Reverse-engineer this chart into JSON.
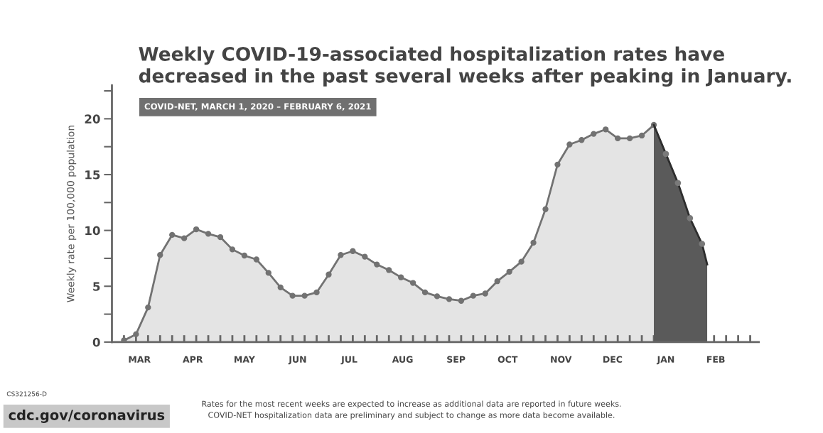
{
  "chart_data": {
    "type": "area",
    "title": "Weekly COVID-19-associated hospitalization rates have\ndecreased in the past several weeks after peaking in January.",
    "subtitle": "COVID-NET, MARCH 1, 2020 – FEBRUARY 6, 2021",
    "ylabel": "Weekly rate per 100,000 population",
    "annotations": [
      "CS321256-D",
      "cdc.gov/coronavirus",
      "Rates for the most recent weeks are expected to increase as additional data are reported in future weeks.\nCOVID-NET hospitalization data are preliminary and subject to change as more data become available."
    ],
    "series": [
      {
        "color": "#e4e4e4",
        "marker": "circle",
        "x": [
          "2020-03-07",
          "2020-03-14",
          "2020-03-21",
          "2020-03-28",
          "2020-04-04",
          "2020-04-11",
          "2020-04-18",
          "2020-04-25",
          "2020-05-02",
          "2020-05-09",
          "2020-05-16",
          "2020-05-23",
          "2020-05-30",
          "2020-06-06",
          "2020-06-13",
          "2020-06-20",
          "2020-06-27",
          "2020-07-04",
          "2020-07-11",
          "2020-07-18",
          "2020-07-25",
          "2020-08-01",
          "2020-08-08",
          "2020-08-15",
          "2020-08-22",
          "2020-08-29",
          "2020-09-05",
          "2020-09-12",
          "2020-09-19",
          "2020-09-26",
          "2020-10-03",
          "2020-10-10",
          "2020-10-17",
          "2020-10-24",
          "2020-10-31",
          "2020-11-07",
          "2020-11-14",
          "2020-11-21",
          "2020-11-28",
          "2020-12-05",
          "2020-12-12",
          "2020-12-19",
          "2020-12-26",
          "2021-01-02",
          "2021-01-09"
        ],
        "values": [
          0.15,
          0.7,
          3.1,
          7.8,
          9.6,
          9.3,
          10.1,
          9.7,
          9.4,
          8.3,
          7.75,
          7.4,
          6.2,
          4.9,
          4.15,
          4.15,
          4.45,
          6.05,
          7.8,
          8.15,
          7.65,
          6.95,
          6.45,
          5.8,
          5.3,
          4.45,
          4.1,
          3.85,
          3.7,
          4.15,
          4.35,
          5.45,
          6.3,
          7.2,
          8.9,
          11.9,
          15.9,
          17.7,
          18.1,
          18.65,
          19.05,
          18.25,
          18.25,
          18.5,
          19.45
        ]
      },
      {
        "color": "#5a5a5a",
        "marker": "none",
        "x": [
          "2021-01-09",
          "2021-01-16",
          "2021-01-23",
          "2021-01-30",
          "2021-02-06",
          "2021-02-09"
        ],
        "values": [
          19.45,
          16.85,
          14.25,
          11.1,
          8.8,
          6.95
        ]
      },
      {
        "type": "scatter",
        "color": "#7a7a7a",
        "marker": "circle",
        "x": [
          "2021-01-16",
          "2021-01-23",
          "2021-01-30",
          "2021-02-06"
        ],
        "values": [
          16.85,
          14.25,
          11.1,
          8.8
        ]
      }
    ],
    "xlim": [
      "2020-02-29",
      "2021-03-11"
    ],
    "xticks": [
      {
        "value": "2020-03-07",
        "label": null
      },
      {
        "value": "2020-03-14",
        "label": null
      },
      {
        "value": "2020-03-21",
        "label": null
      },
      {
        "value": "2020-03-28",
        "label": null
      },
      {
        "value": "2020-04-04",
        "label": null
      },
      {
        "value": "2020-04-11",
        "label": null
      },
      {
        "value": "2020-04-18",
        "label": null
      },
      {
        "value": "2020-04-25",
        "label": null
      },
      {
        "value": "2020-05-02",
        "label": null
      },
      {
        "value": "2020-05-09",
        "label": null
      },
      {
        "value": "2020-05-16",
        "label": null
      },
      {
        "value": "2020-05-23",
        "label": null
      },
      {
        "value": "2020-05-30",
        "label": null
      },
      {
        "value": "2020-06-06",
        "label": null
      },
      {
        "value": "2020-06-13",
        "label": null
      },
      {
        "value": "2020-06-20",
        "label": null
      },
      {
        "value": "2020-06-27",
        "label": null
      },
      {
        "value": "2020-07-04",
        "label": null
      },
      {
        "value": "2020-07-11",
        "label": null
      },
      {
        "value": "2020-07-18",
        "label": null
      },
      {
        "value": "2020-07-25",
        "label": null
      },
      {
        "value": "2020-08-01",
        "label": null
      },
      {
        "value": "2020-08-08",
        "label": null
      },
      {
        "value": "2020-08-15",
        "label": null
      },
      {
        "value": "2020-08-22",
        "label": null
      },
      {
        "value": "2020-08-29",
        "label": null
      },
      {
        "value": "2020-09-05",
        "label": null
      },
      {
        "value": "2020-09-12",
        "label": null
      },
      {
        "value": "2020-09-19",
        "label": null
      },
      {
        "value": "2020-09-26",
        "label": null
      },
      {
        "value": "2020-10-03",
        "label": null
      },
      {
        "value": "2020-10-10",
        "label": null
      },
      {
        "value": "2020-10-17",
        "label": null
      },
      {
        "value": "2020-10-24",
        "label": null
      },
      {
        "value": "2020-10-31",
        "label": null
      },
      {
        "value": "2020-11-07",
        "label": null
      },
      {
        "value": "2020-11-14",
        "label": null
      },
      {
        "value": "2020-11-21",
        "label": null
      },
      {
        "value": "2020-11-28",
        "label": null
      },
      {
        "value": "2020-12-05",
        "label": null
      },
      {
        "value": "2020-12-12",
        "label": null
      },
      {
        "value": "2020-12-19",
        "label": null
      },
      {
        "value": "2020-12-26",
        "label": null
      },
      {
        "value": "2021-01-02",
        "label": null
      },
      {
        "value": "2021-01-09",
        "label": null
      },
      {
        "value": "2021-01-16",
        "label": null
      },
      {
        "value": "2021-01-23",
        "label": null
      },
      {
        "value": "2021-01-30",
        "label": null
      },
      {
        "value": "2021-02-06",
        "label": null
      },
      {
        "value": "2021-02-13",
        "label": null
      },
      {
        "value": "2021-02-20",
        "label": null
      },
      {
        "value": "2021-02-27",
        "label": null
      },
      {
        "value": "2021-03-06",
        "label": null
      },
      {
        "value": "2020-03-16",
        "label": "MAR"
      },
      {
        "value": "2020-04-16",
        "label": "APR"
      },
      {
        "value": "2020-05-16",
        "label": "MAY"
      },
      {
        "value": "2020-06-16",
        "label": "JUN"
      },
      {
        "value": "2020-07-16",
        "label": "JUL"
      },
      {
        "value": "2020-08-16",
        "label": "AUG"
      },
      {
        "value": "2020-09-16",
        "label": "SEP"
      },
      {
        "value": "2020-10-16",
        "label": "OCT"
      },
      {
        "value": "2020-11-16",
        "label": "NOV"
      },
      {
        "value": "2020-12-16",
        "label": "DEC"
      },
      {
        "value": "2021-01-16",
        "label": "JAN"
      },
      {
        "value": "2021-02-14",
        "label": "FEB"
      }
    ],
    "ylim": [
      0,
      23
    ],
    "yticks": [
      0,
      {
        "value": 2.5,
        "label": null
      },
      5,
      {
        "value": 7.5,
        "label": null
      },
      10,
      {
        "value": 12.5,
        "label": null
      },
      15,
      {
        "value": 17.5,
        "label": null
      },
      20,
      {
        "value": 22.5,
        "label": null
      }
    ],
    "grid": false,
    "legend": false
  }
}
